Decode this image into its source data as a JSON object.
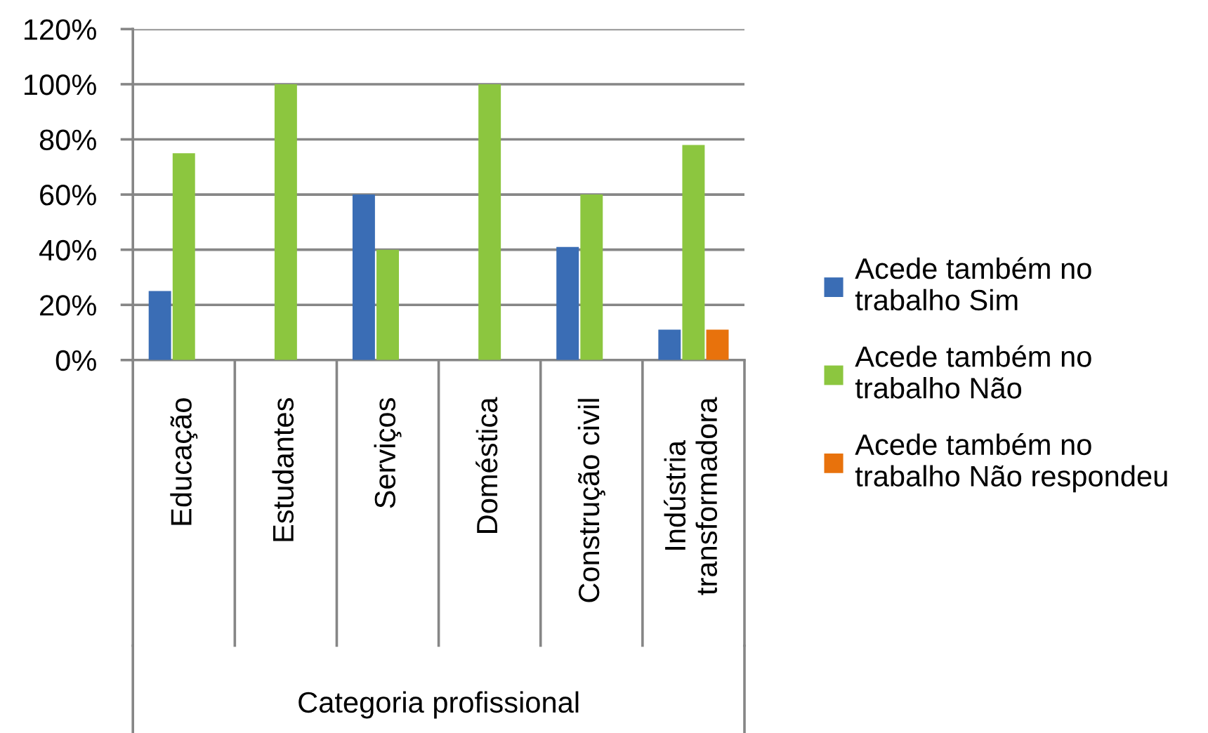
{
  "chart_data": {
    "type": "bar",
    "xlabel": "Categoria profissional",
    "categories": [
      "Educação",
      "Estudantes",
      "Serviços",
      "Doméstica",
      "Construção civil",
      "Indústria transformadora"
    ],
    "series": [
      {
        "name": "Acede também no trabalho Sim",
        "color": "#3a6db5",
        "values": [
          25,
          null,
          60,
          null,
          41,
          11
        ]
      },
      {
        "name": "Acede também no trabalho Não",
        "color": "#8cc63f",
        "values": [
          75,
          100,
          40,
          100,
          60,
          78
        ]
      },
      {
        "name": "Acede também no trabalho Não respondeu",
        "color": "#e8720c",
        "values": [
          null,
          null,
          null,
          null,
          null,
          11
        ]
      }
    ],
    "ylim": [
      0,
      120
    ],
    "yticks": [
      {
        "value": 0,
        "label": "0%"
      },
      {
        "value": 20,
        "label": "20%"
      },
      {
        "value": 40,
        "label": "40%"
      },
      {
        "value": 60,
        "label": "60%"
      },
      {
        "value": 80,
        "label": "80%"
      },
      {
        "value": 100,
        "label": "100%"
      },
      {
        "value": 120,
        "label": "120%"
      }
    ],
    "grid": "y",
    "legend": "right"
  }
}
